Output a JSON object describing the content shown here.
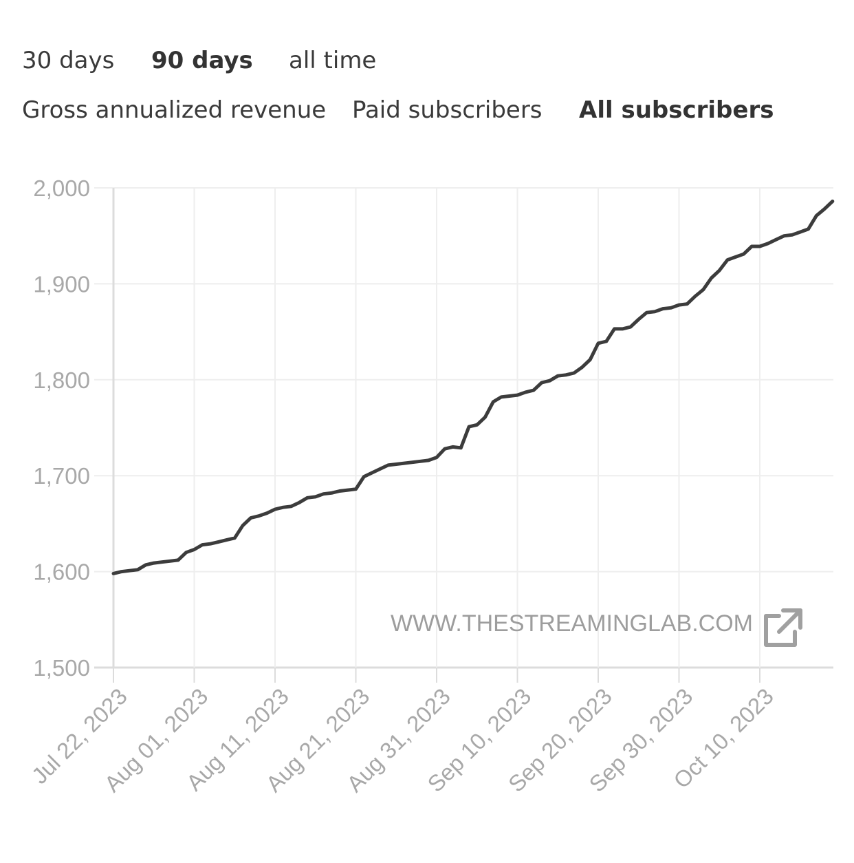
{
  "range_tabs": [
    {
      "label": "30 days",
      "active": false
    },
    {
      "label": "90 days",
      "active": true
    },
    {
      "label": "all time",
      "active": false
    }
  ],
  "metric_tabs": [
    {
      "label": "Gross annualized revenue",
      "active": false
    },
    {
      "label": "Paid subscribers",
      "active": false
    },
    {
      "label": "All subscribers",
      "active": true
    }
  ],
  "watermark": {
    "text": "WWW.THESTREAMINGLAB.COM",
    "icon": "external-link-icon"
  },
  "colors": {
    "line": "#3c3c3c",
    "grid": "#eeeeee",
    "axis": "#dcdcdc",
    "tick_text": "#a8a8a8",
    "watermark": "#9d9d9d"
  },
  "chart_data": {
    "type": "line",
    "title": "",
    "xlabel": "",
    "ylabel": "",
    "ylim": [
      1500,
      2000
    ],
    "y_ticks": [
      1500,
      1600,
      1700,
      1800,
      1900,
      2000
    ],
    "y_tick_labels": [
      "1,500",
      "1,600",
      "1,700",
      "1,800",
      "1,900",
      "2,000"
    ],
    "x_ticks": [
      "2023-07-22",
      "2023-08-01",
      "2023-08-11",
      "2023-08-21",
      "2023-08-31",
      "2023-09-10",
      "2023-09-20",
      "2023-09-30",
      "2023-10-10"
    ],
    "x_tick_labels": [
      "Jul 22, 2023",
      "Aug 01, 2023",
      "Aug 11, 2023",
      "Aug 21, 2023",
      "Aug 31, 2023",
      "Sep 10, 2023",
      "Sep 20, 2023",
      "Sep 30, 2023",
      "Oct 10, 2023"
    ],
    "xlim": [
      "2023-07-22",
      "2023-10-19"
    ],
    "grid": true,
    "series": [
      {
        "x": [
          "2023-07-22",
          "2023-07-23",
          "2023-07-24",
          "2023-07-25",
          "2023-07-26",
          "2023-07-27",
          "2023-07-28",
          "2023-07-29",
          "2023-07-30",
          "2023-07-31",
          "2023-08-01",
          "2023-08-02",
          "2023-08-03",
          "2023-08-04",
          "2023-08-05",
          "2023-08-06",
          "2023-08-07",
          "2023-08-08",
          "2023-08-09",
          "2023-08-10",
          "2023-08-11",
          "2023-08-12",
          "2023-08-13",
          "2023-08-14",
          "2023-08-15",
          "2023-08-16",
          "2023-08-17",
          "2023-08-18",
          "2023-08-19",
          "2023-08-20",
          "2023-08-21",
          "2023-08-22",
          "2023-08-23",
          "2023-08-24",
          "2023-08-25",
          "2023-08-26",
          "2023-08-27",
          "2023-08-28",
          "2023-08-29",
          "2023-08-30",
          "2023-08-31",
          "2023-09-01",
          "2023-09-02",
          "2023-09-03",
          "2023-09-04",
          "2023-09-05",
          "2023-09-06",
          "2023-09-07",
          "2023-09-08",
          "2023-09-09",
          "2023-09-10",
          "2023-09-11",
          "2023-09-12",
          "2023-09-13",
          "2023-09-14",
          "2023-09-15",
          "2023-09-16",
          "2023-09-17",
          "2023-09-18",
          "2023-09-19",
          "2023-09-20",
          "2023-09-21",
          "2023-09-22",
          "2023-09-23",
          "2023-09-24",
          "2023-09-25",
          "2023-09-26",
          "2023-09-27",
          "2023-09-28",
          "2023-09-29",
          "2023-09-30",
          "2023-10-01",
          "2023-10-02",
          "2023-10-03",
          "2023-10-04",
          "2023-10-05",
          "2023-10-06",
          "2023-10-07",
          "2023-10-08",
          "2023-10-09",
          "2023-10-10",
          "2023-10-11",
          "2023-10-12",
          "2023-10-13",
          "2023-10-14",
          "2023-10-15",
          "2023-10-16",
          "2023-10-17",
          "2023-10-18",
          "2023-10-19"
        ],
        "values": [
          1598,
          1600,
          1601,
          1602,
          1607,
          1609,
          1610,
          1611,
          1612,
          1620,
          1623,
          1628,
          1629,
          1631,
          1633,
          1635,
          1648,
          1656,
          1658,
          1661,
          1665,
          1667,
          1668,
          1672,
          1677,
          1678,
          1681,
          1682,
          1684,
          1685,
          1686,
          1699,
          1703,
          1707,
          1711,
          1712,
          1713,
          1714,
          1715,
          1716,
          1719,
          1728,
          1730,
          1729,
          1751,
          1753,
          1761,
          1777,
          1782,
          1783,
          1784,
          1787,
          1789,
          1797,
          1799,
          1804,
          1805,
          1807,
          1813,
          1821,
          1838,
          1840,
          1853,
          1853,
          1855,
          1863,
          1870,
          1871,
          1874,
          1875,
          1878,
          1879,
          1887,
          1894,
          1906,
          1914,
          1925,
          1928,
          1931,
          1939,
          1939,
          1942,
          1946,
          1950,
          1951,
          1954,
          1957,
          1971,
          1978,
          1986
        ]
      }
    ]
  }
}
